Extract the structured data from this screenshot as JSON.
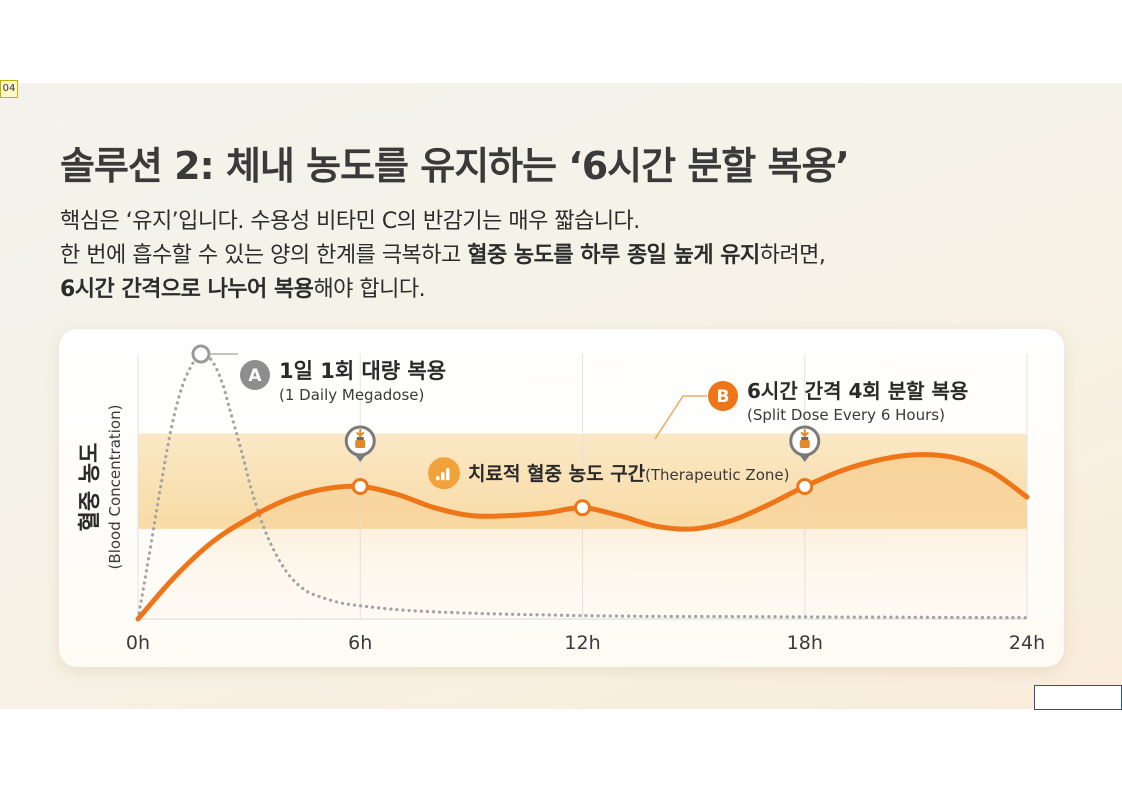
{
  "page": {
    "number": "04"
  },
  "slide": {
    "title": "솔루션 2: 체내 농도를 유지하는 ‘6시간 분할 복용’",
    "body": [
      {
        "parts": [
          {
            "text": "핵심은 ‘유지’입니다. 수용성 비타민 C의 반감기는 매우 짧습니다.",
            "bold": false
          }
        ]
      },
      {
        "parts": [
          {
            "text": "한 번에 흡수할 수 있는 양의 한계를 극복하고 ",
            "bold": false
          },
          {
            "text": "혈중 농도를 하루 종일 높게 유지",
            "bold": true
          },
          {
            "text": "하려면,",
            "bold": false
          }
        ]
      },
      {
        "parts": [
          {
            "text": "6시간 간격으로 나누어 복용",
            "bold": true
          },
          {
            "text": "해야 합니다.",
            "bold": false
          }
        ]
      }
    ]
  },
  "chart_data": {
    "type": "line",
    "ylabel": "혈중 농도",
    "ylabel_sub": "(Blood Concentration)",
    "xlabel": "",
    "x_ticks": [
      "0h",
      "6h",
      "12h",
      "18h",
      "24h"
    ],
    "xlim": [
      0,
      24
    ],
    "ylim": [
      0,
      100
    ],
    "grid": "vertical",
    "therapeutic_zone": {
      "label": "치료적 혈중 농도 구간",
      "label_en": "(Therapeutic Zone)",
      "range": [
        34,
        70
      ]
    },
    "series": [
      {
        "name": "1일 1회 대량 복용",
        "name_en": "(1 Daily Megadose)",
        "badge": "A",
        "style": "dotted",
        "color": "#a3a3a3",
        "x": [
          0,
          0.3,
          0.6,
          0.9,
          1.2,
          1.5,
          1.7,
          1.9,
          2.1,
          2.3,
          2.5,
          2.8,
          3.1,
          3.5,
          4,
          4.5,
          5,
          5.5,
          6,
          7,
          8,
          9,
          10,
          12,
          14,
          16,
          18,
          20,
          22,
          24
        ],
        "y": [
          0,
          24,
          49,
          72,
          88,
          97,
          100,
          99,
          95,
          88,
          78,
          63,
          47,
          31,
          18,
          11,
          8,
          6,
          5,
          3.5,
          2.7,
          2.2,
          1.8,
          1.3,
          1,
          0.9,
          0.8,
          0.7,
          0.6,
          0.5
        ],
        "peak_marker": {
          "x": 1.7,
          "y": 100
        }
      },
      {
        "name": "6시간 간격 4회 분할 복용",
        "name_en": "(Split Dose Every 6 Hours)",
        "badge": "B",
        "style": "solid",
        "color": "#ee7518",
        "x": [
          0,
          1,
          2,
          3,
          4,
          5,
          6,
          7,
          8,
          9,
          10,
          11,
          12,
          13,
          14,
          15,
          16,
          17,
          18,
          19,
          20,
          21,
          22,
          23,
          24
        ],
        "y": [
          0,
          16,
          29,
          38,
          45,
          49,
          50,
          47,
          42,
          39,
          39,
          40,
          42,
          39,
          35,
          34,
          37,
          43,
          50,
          56,
          60,
          62,
          61,
          56,
          46
        ],
        "markers": [
          {
            "x": 6,
            "y": 50
          },
          {
            "x": 12,
            "y": 42
          },
          {
            "x": 18,
            "y": 50
          }
        ],
        "dose_pins": [
          6,
          18
        ]
      }
    ]
  },
  "colors": {
    "accent_orange": "#ee7518",
    "megadose_gray": "#a3a3a3",
    "zone_fill": "#f7d79a",
    "grid": "#e2e2e2",
    "badge_a": "#8e8e8e",
    "zone_icon": "#f2a23a"
  },
  "icons": {
    "zone": "bar-chart-icon",
    "dose_pin": "pill-bottle-icon"
  }
}
